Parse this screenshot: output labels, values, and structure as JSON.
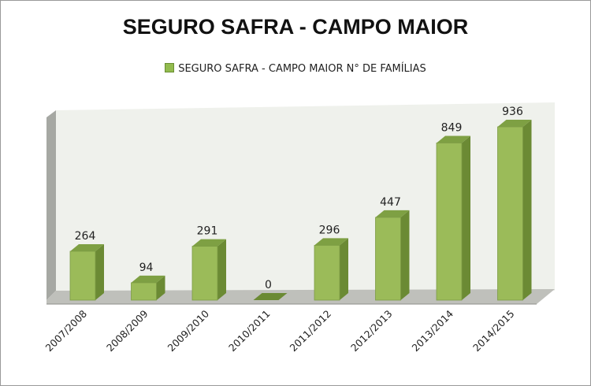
{
  "chart_data": {
    "type": "bar",
    "title": "SEGURO SAFRA - CAMPO MAIOR",
    "legend": {
      "position": "top",
      "entries": [
        "SEGURO SAFRA - CAMPO MAIOR N° DE FAMÍLIAS"
      ]
    },
    "categories": [
      "2007/2008",
      "2008/2009",
      "2009/2010",
      "2010/2011",
      "2011/2012",
      "2012/2013",
      "2013/2014",
      "2014/2015"
    ],
    "series": [
      {
        "name": "SEGURO SAFRA - CAMPO MAIOR N° DE FAMÍLIAS",
        "values": [
          264,
          94,
          291,
          0,
          296,
          447,
          849,
          936
        ]
      }
    ],
    "data_labels": [
      "264",
      "94",
      "291",
      "0",
      "296",
      "447",
      "849",
      "936"
    ],
    "style": "3d-column",
    "grid": false,
    "colors": {
      "bar_front": "#9bbb59",
      "bar_side": "#6b8a34",
      "bar_top": "#7ea043",
      "wall": "#eff1ec",
      "floor": "#bfc0bb",
      "side_wall": "#a6a8a3"
    }
  }
}
